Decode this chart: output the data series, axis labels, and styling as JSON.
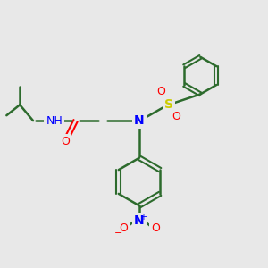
{
  "bg_color": "#e8e8e8",
  "bond_color": "#2d6b2d",
  "bond_lw": 1.8,
  "atom_colors": {
    "N": "#0000ff",
    "O": "#ff0000",
    "S": "#cccc00",
    "H": "#808080",
    "C": "#2d6b2d"
  },
  "figsize": [
    3.0,
    3.0
  ],
  "dpi": 100
}
